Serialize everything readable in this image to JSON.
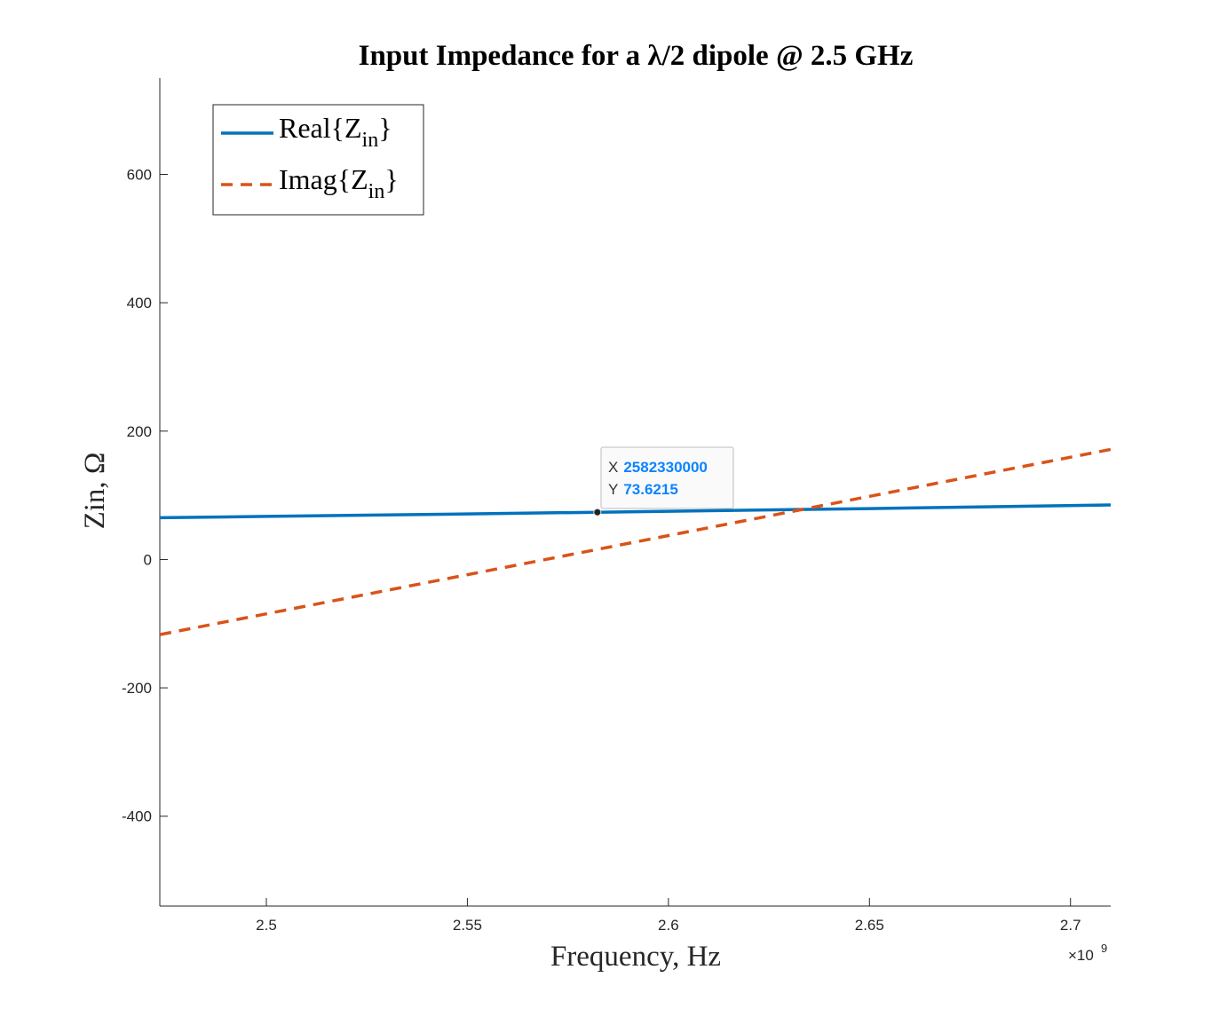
{
  "chart_data": {
    "type": "line",
    "title": "Input Impedance for a λ/2 dipole @ 2.5 GHz",
    "xlabel": "Frequency, Hz",
    "ylabel": "Zin, Ω",
    "x_exponent_label": "×10",
    "x_exponent_power": "9",
    "xlim": [
      2473500000,
      2710000000
    ],
    "ylim": [
      -540,
      750
    ],
    "x_ticks": [
      2500000000,
      2550000000,
      2600000000,
      2650000000,
      2700000000
    ],
    "x_tick_labels": [
      "2.5",
      "2.55",
      "2.6",
      "2.65",
      "2.7"
    ],
    "y_ticks": [
      -400,
      -200,
      0,
      200,
      400,
      600
    ],
    "y_tick_labels": [
      "-400",
      "-200",
      "0",
      "200",
      "400",
      "600"
    ],
    "series": [
      {
        "name": "Real{Zin}",
        "legend_main": "Real{Z",
        "legend_sub": "in",
        "legend_close": "}",
        "color": "#0072BD",
        "style": "solid",
        "x": [
          2473500000,
          2500000000,
          2550000000,
          2582330000,
          2600000000,
          2650000000,
          2710000000
        ],
        "y": [
          65.0,
          67.1,
          71.0,
          73.6215,
          75.1,
          79.3,
          85.0
        ]
      },
      {
        "name": "Imag{Zin}",
        "legend_main": "Imag{Z",
        "legend_sub": "in",
        "legend_close": "}",
        "color": "#D95319",
        "style": "dashed",
        "x": [
          2473500000,
          2500000000,
          2550000000,
          2600000000,
          2650000000,
          2710000000
        ],
        "y": [
          -117,
          -84.7,
          -23.7,
          37.3,
          98.3,
          171.5
        ]
      }
    ],
    "grid": false,
    "legend_position": "top-left",
    "datatip": {
      "x_label": "X",
      "x_value": "2582330000",
      "y_label": "Y",
      "y_value": "73.6215",
      "x": 2582330000,
      "y": 73.6215
    }
  }
}
